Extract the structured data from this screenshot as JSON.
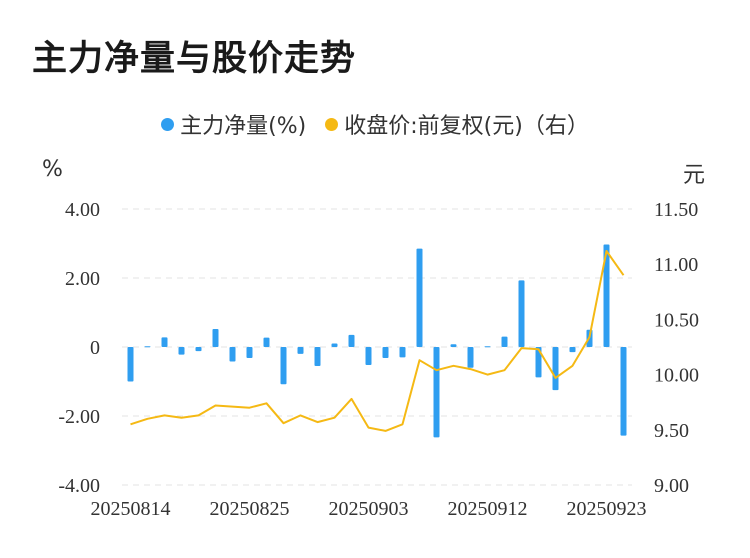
{
  "title": "主力净量与股价走势",
  "colors": {
    "bar": "#2f9ef0",
    "line": "#f5b914",
    "grid": "#e3e3e3",
    "tick": "#333333"
  },
  "chart_data": {
    "type": "bar+line",
    "title": "主力净量与股价走势",
    "left_unit": "%",
    "right_unit": "元",
    "legend": [
      "主力净量(%)",
      "收盘价:前复权(元)（右）"
    ],
    "legend_position": "top-center",
    "grid": "horizontal-dashed",
    "y_left": {
      "min": -4,
      "max": 4,
      "ticks": [
        "4.00",
        "2.00",
        "0",
        "-2.00",
        "-4.00"
      ]
    },
    "y_right": {
      "min": 9.0,
      "max": 11.5,
      "ticks": [
        "11.50",
        "11.00",
        "10.50",
        "10.00",
        "9.50",
        "9.00"
      ]
    },
    "x_tick_labels": [
      {
        "index": 0,
        "label": "20250814"
      },
      {
        "index": 7,
        "label": "20250825"
      },
      {
        "index": 14,
        "label": "20250903"
      },
      {
        "index": 21,
        "label": "20250912"
      },
      {
        "index": 28,
        "label": "20250923"
      }
    ],
    "series": [
      {
        "name": "主力净量(%)",
        "type": "bar",
        "axis": "left",
        "values": [
          -1.0,
          0.02,
          0.28,
          -0.22,
          -0.12,
          0.52,
          -0.42,
          -0.32,
          0.27,
          -1.08,
          -0.2,
          -0.55,
          0.1,
          0.35,
          -0.52,
          -0.32,
          -0.3,
          2.85,
          -2.62,
          0.08,
          -0.6,
          0.02,
          0.3,
          1.93,
          -0.88,
          -1.25,
          -0.15,
          0.5,
          2.97,
          -2.57
        ]
      },
      {
        "name": "收盘价:前复权(元)（右）",
        "type": "line",
        "axis": "right",
        "values": [
          9.55,
          9.6,
          9.63,
          9.61,
          9.63,
          9.72,
          9.71,
          9.7,
          9.74,
          9.56,
          9.63,
          9.57,
          9.61,
          9.78,
          9.52,
          9.49,
          9.55,
          10.13,
          10.04,
          10.08,
          10.05,
          10.0,
          10.04,
          10.24,
          10.23,
          9.97,
          10.08,
          10.34,
          11.12,
          10.9
        ]
      }
    ]
  }
}
